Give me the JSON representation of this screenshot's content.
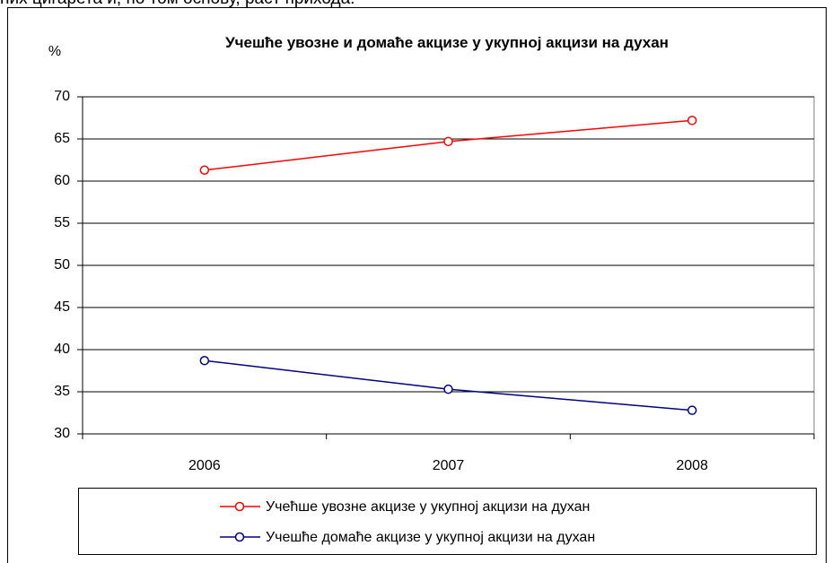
{
  "text_above": "них цигарета и, по том основу, раст прихода.",
  "chart_data": {
    "type": "line",
    "title": "Учешће увозне и домаће акцизе у укупној акцизи на духан",
    "y_label": "%",
    "categories": [
      "2006",
      "2007",
      "2008"
    ],
    "series": [
      {
        "name": "Учећше увозне акцизе у укупној акцизи на духан",
        "color": "#ff0000",
        "values": [
          61.3,
          64.7,
          67.2
        ]
      },
      {
        "name": "Учешће домаће акцизе у укупној акцизи на духан",
        "color": "#000080",
        "values": [
          38.7,
          35.3,
          32.8
        ]
      }
    ],
    "ylim": [
      30,
      70
    ],
    "yticks": [
      30,
      35,
      40,
      45,
      50,
      55,
      60,
      65,
      70
    ],
    "grid": true,
    "legend": "bottom"
  }
}
